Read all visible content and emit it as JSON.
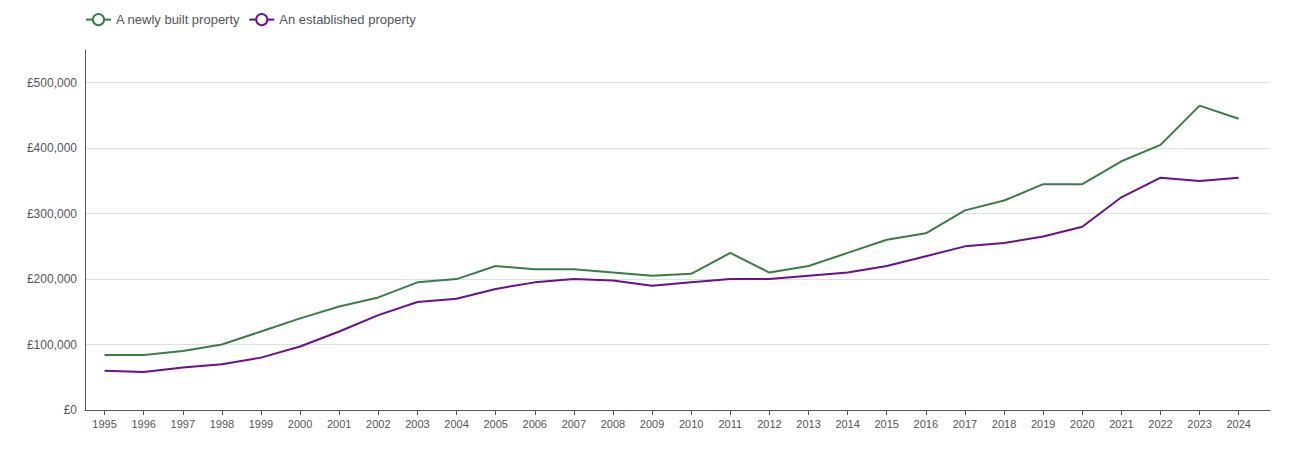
{
  "chart_data": {
    "type": "line",
    "x": [
      1995,
      1996,
      1997,
      1998,
      1999,
      2000,
      2001,
      2002,
      2003,
      2004,
      2005,
      2006,
      2007,
      2008,
      2009,
      2010,
      2011,
      2012,
      2013,
      2014,
      2015,
      2016,
      2017,
      2018,
      2019,
      2020,
      2021,
      2022,
      2023,
      2024
    ],
    "series": [
      {
        "name": "A newly built property",
        "color": "#3a7d44",
        "values": [
          84000,
          84000,
          90000,
          100000,
          120000,
          140000,
          158000,
          172000,
          195000,
          200000,
          220000,
          215000,
          215000,
          210000,
          205000,
          208000,
          240000,
          210000,
          220000,
          240000,
          260000,
          270000,
          305000,
          320000,
          345000,
          345000,
          380000,
          405000,
          465000,
          445000
        ]
      },
      {
        "name": "An established property",
        "color": "#6a0f8e",
        "values": [
          60000,
          58000,
          65000,
          70000,
          80000,
          97000,
          120000,
          145000,
          165000,
          170000,
          185000,
          195000,
          200000,
          198000,
          190000,
          195000,
          200000,
          200000,
          205000,
          210000,
          220000,
          235000,
          250000,
          255000,
          265000,
          280000,
          325000,
          355000,
          350000,
          355000
        ]
      }
    ],
    "xlim": [
      1994.5,
      2024.8
    ],
    "xticks": [
      1995,
      1996,
      1997,
      1998,
      1999,
      2000,
      2001,
      2002,
      2003,
      2004,
      2005,
      2006,
      2007,
      2008,
      2009,
      2010,
      2011,
      2012,
      2013,
      2014,
      2015,
      2016,
      2017,
      2018,
      2019,
      2020,
      2021,
      2022,
      2023,
      2024
    ],
    "ylim": [
      0,
      550000
    ],
    "yticks": [
      {
        "value": 0,
        "label": "£0"
      },
      {
        "value": 100000,
        "label": "£100,000"
      },
      {
        "value": 200000,
        "label": "£200,000"
      },
      {
        "value": 300000,
        "label": "£300,000"
      },
      {
        "value": 400000,
        "label": "£400,000"
      },
      {
        "value": 500000,
        "label": "£500,000"
      }
    ],
    "grid": true,
    "legend": "upper left"
  }
}
